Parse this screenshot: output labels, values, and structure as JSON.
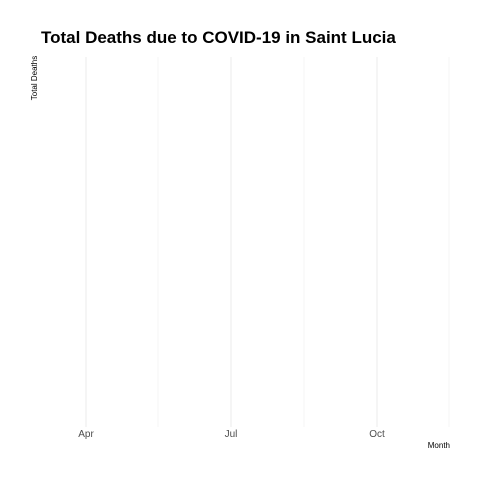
{
  "chart_data": {
    "type": "line",
    "title": "Total Deaths due to COVID-19 in Saint Lucia",
    "xlabel": "Month",
    "ylabel": "Total Deaths",
    "x_tick_labels": [
      "Apr",
      "Jul",
      "Oct"
    ],
    "x": [],
    "y": [],
    "grid": true,
    "legend": "none"
  }
}
